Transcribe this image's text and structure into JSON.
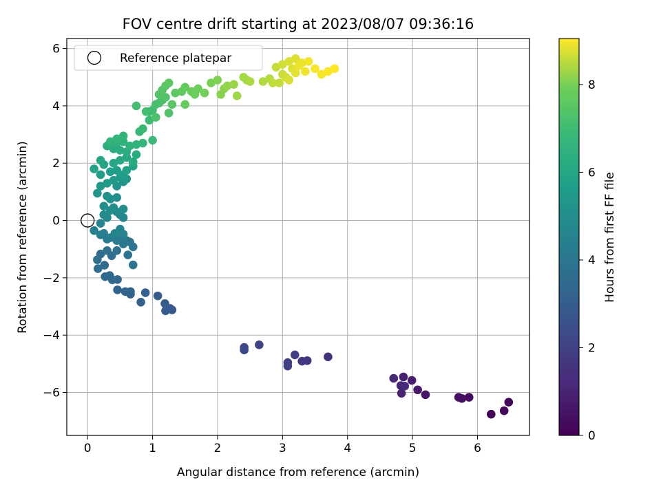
{
  "chart_data": {
    "type": "scatter",
    "title": "FOV centre drift starting at 2023/08/07 09:36:16",
    "xlabel": "Angular distance from reference (arcmin)",
    "ylabel": "Rotation from reference (arcmin)",
    "xlim": [
      -0.32,
      6.8
    ],
    "ylim": [
      -7.5,
      6.35
    ],
    "xticks": [
      0,
      1,
      2,
      3,
      4,
      5,
      6
    ],
    "yticks": [
      -6,
      -4,
      -2,
      0,
      2,
      4,
      6
    ],
    "grid": true,
    "legend": {
      "position": "top-left",
      "entries": [
        "Reference platepar"
      ]
    },
    "reference_point": {
      "x": 0,
      "y": 0
    },
    "colorbar": {
      "label": "Hours from first FF file",
      "colormap": "viridis",
      "range": [
        0,
        9.05
      ],
      "ticks": [
        0,
        2,
        4,
        6,
        8
      ]
    },
    "series": [
      {
        "color_by": "hours",
        "points": [
          [
            6.21,
            -6.76,
            0.05
          ],
          [
            6.48,
            -6.34,
            0.12
          ],
          [
            6.41,
            -6.64,
            0.2
          ],
          [
            5.87,
            -6.17,
            0.3
          ],
          [
            5.76,
            -6.21,
            0.38
          ],
          [
            5.71,
            -6.17,
            0.45
          ],
          [
            5.2,
            -6.08,
            0.6
          ],
          [
            5.08,
            -5.91,
            0.7
          ],
          [
            4.99,
            -5.58,
            0.8
          ],
          [
            4.86,
            -5.46,
            0.9
          ],
          [
            4.83,
            -6.03,
            1.0
          ],
          [
            4.82,
            -5.76,
            1.05
          ],
          [
            4.71,
            -5.51,
            1.15
          ],
          [
            4.88,
            -5.78,
            1.2
          ],
          [
            3.7,
            -4.76,
            1.5
          ],
          [
            3.38,
            -4.89,
            1.6
          ],
          [
            3.3,
            -4.91,
            1.7
          ],
          [
            3.19,
            -4.69,
            1.8
          ],
          [
            3.08,
            -4.96,
            1.9
          ],
          [
            3.08,
            -5.08,
            1.95
          ],
          [
            2.64,
            -4.34,
            2.1
          ],
          [
            2.41,
            -4.43,
            2.2
          ],
          [
            2.41,
            -4.52,
            2.25
          ],
          [
            1.3,
            -3.12,
            2.8
          ],
          [
            1.27,
            -3.07,
            2.85
          ],
          [
            1.2,
            -3.15,
            2.9
          ],
          [
            1.19,
            -2.9,
            2.95
          ],
          [
            1.08,
            -2.63,
            3.0
          ],
          [
            0.89,
            -2.52,
            3.05
          ],
          [
            0.82,
            -2.85,
            3.1
          ],
          [
            0.66,
            -2.57,
            3.15
          ],
          [
            0.66,
            -2.48,
            3.2
          ],
          [
            0.58,
            -2.48,
            3.25
          ],
          [
            0.46,
            -2.42,
            3.3
          ],
          [
            0.46,
            -2.06,
            3.35
          ],
          [
            0.38,
            -2.07,
            3.4
          ],
          [
            0.34,
            -1.92,
            3.45
          ],
          [
            0.27,
            -1.96,
            3.5
          ],
          [
            0.26,
            -1.56,
            3.55
          ],
          [
            0.2,
            -1.17,
            3.6
          ],
          [
            0.16,
            -1.68,
            3.65
          ],
          [
            0.15,
            -1.37,
            3.7
          ],
          [
            0.37,
            -1.23,
            3.75
          ],
          [
            0.45,
            -1.05,
            3.8
          ],
          [
            0.62,
            -1.2,
            3.85
          ],
          [
            0.7,
            -1.55,
            3.9
          ],
          [
            0.7,
            -0.92,
            3.95
          ],
          [
            0.65,
            -0.75,
            4.0
          ],
          [
            0.6,
            -0.7,
            4.05
          ],
          [
            0.55,
            -0.82,
            4.1
          ],
          [
            0.5,
            -0.62,
            4.15
          ],
          [
            0.45,
            -0.7,
            4.2
          ],
          [
            0.4,
            -0.55,
            4.25
          ],
          [
            0.35,
            -0.6,
            4.3
          ],
          [
            0.3,
            -0.65,
            4.35
          ],
          [
            0.25,
            -0.45,
            4.4
          ],
          [
            0.2,
            -0.5,
            4.45
          ],
          [
            0.1,
            -0.35,
            4.5
          ],
          [
            0.55,
            -0.48,
            4.55
          ],
          [
            0.5,
            -0.3,
            4.6
          ],
          [
            0.42,
            -0.45,
            4.65
          ],
          [
            0.55,
            0.1,
            4.7
          ],
          [
            0.5,
            0.2,
            4.75
          ],
          [
            0.45,
            0.3,
            4.8
          ],
          [
            0.3,
            0.1,
            4.85
          ],
          [
            0.25,
            0.2,
            4.9
          ],
          [
            0.35,
            0.35,
            4.95
          ],
          [
            0.4,
            0.45,
            5.0
          ],
          [
            0.55,
            0.4,
            5.05
          ],
          [
            0.35,
            0.75,
            5.1
          ],
          [
            0.45,
            0.8,
            5.15
          ],
          [
            0.3,
            0.85,
            5.2
          ],
          [
            0.15,
            0.95,
            5.25
          ],
          [
            0.45,
            1.2,
            5.3
          ],
          [
            0.55,
            1.35,
            5.35
          ],
          [
            0.6,
            1.45,
            5.4
          ],
          [
            0.5,
            1.5,
            5.45
          ],
          [
            0.4,
            1.4,
            5.5
          ],
          [
            0.3,
            1.3,
            5.55
          ],
          [
            0.2,
            1.6,
            5.6
          ],
          [
            0.35,
            1.7,
            5.65
          ],
          [
            0.45,
            1.75,
            5.7
          ],
          [
            0.55,
            1.6,
            5.75
          ],
          [
            0.6,
            1.75,
            5.8
          ],
          [
            0.7,
            1.9,
            5.85
          ],
          [
            0.1,
            1.8,
            5.9
          ],
          [
            0.25,
            1.95,
            5.95
          ],
          [
            0.4,
            2.0,
            6.0
          ],
          [
            0.5,
            2.1,
            6.05
          ],
          [
            0.6,
            2.2,
            6.1
          ],
          [
            0.7,
            2.05,
            6.15
          ],
          [
            0.75,
            2.3,
            6.2
          ],
          [
            0.6,
            2.4,
            6.25
          ],
          [
            0.5,
            2.45,
            6.3
          ],
          [
            0.4,
            2.5,
            6.35
          ],
          [
            0.3,
            2.6,
            6.4
          ],
          [
            0.45,
            2.7,
            6.45
          ],
          [
            0.55,
            2.75,
            6.5
          ],
          [
            0.65,
            2.6,
            6.55
          ],
          [
            0.75,
            2.65,
            6.6
          ],
          [
            0.35,
            2.75,
            6.6
          ],
          [
            0.45,
            2.85,
            6.65
          ],
          [
            0.55,
            2.95,
            6.7
          ],
          [
            0.85,
            2.7,
            6.75
          ],
          [
            0.8,
            3.1,
            6.8
          ],
          [
            0.85,
            3.2,
            6.85
          ],
          [
            1.0,
            2.8,
            6.9
          ],
          [
            0.95,
            3.5,
            6.95
          ],
          [
            0.95,
            3.8,
            7.0
          ],
          [
            1.0,
            3.85,
            7.05
          ],
          [
            0.75,
            4.0,
            7.1
          ],
          [
            1.05,
            4.05,
            7.15
          ],
          [
            1.1,
            4.1,
            7.2
          ],
          [
            1.15,
            4.2,
            7.25
          ],
          [
            1.25,
            3.75,
            7.3
          ],
          [
            1.2,
            4.3,
            7.35
          ],
          [
            1.1,
            4.4,
            7.4
          ],
          [
            1.15,
            4.55,
            7.45
          ],
          [
            1.2,
            4.7,
            7.5
          ],
          [
            1.3,
            4.05,
            7.55
          ],
          [
            1.35,
            4.45,
            7.6
          ],
          [
            1.45,
            4.5,
            7.65
          ],
          [
            1.5,
            4.65,
            7.7
          ],
          [
            1.5,
            4.05,
            7.75
          ],
          [
            1.6,
            4.5,
            7.8
          ],
          [
            1.65,
            4.4,
            7.85
          ],
          [
            1.7,
            4.6,
            7.9
          ],
          [
            1.8,
            4.45,
            7.95
          ],
          [
            1.9,
            4.8,
            8.0
          ],
          [
            2.0,
            4.9,
            8.05
          ],
          [
            2.05,
            4.4,
            8.1
          ],
          [
            2.1,
            4.6,
            8.15
          ],
          [
            2.15,
            4.7,
            8.2
          ],
          [
            2.25,
            4.75,
            8.25
          ],
          [
            2.3,
            4.35,
            8.3
          ],
          [
            2.45,
            4.9,
            8.35
          ],
          [
            2.5,
            4.85,
            8.4
          ],
          [
            2.7,
            4.85,
            8.45
          ],
          [
            2.8,
            4.95,
            8.5
          ],
          [
            2.85,
            4.8,
            8.55
          ],
          [
            2.95,
            4.8,
            8.6
          ],
          [
            3.0,
            5.1,
            8.65
          ],
          [
            3.05,
            5.0,
            8.7
          ],
          [
            3.1,
            4.9,
            8.75
          ],
          [
            3.15,
            5.3,
            8.8
          ],
          [
            3.2,
            5.15,
            8.85
          ],
          [
            3.25,
            5.4,
            8.9
          ],
          [
            3.3,
            5.5,
            8.92
          ],
          [
            3.35,
            5.2,
            8.95
          ],
          [
            3.4,
            5.55,
            8.97
          ],
          [
            3.5,
            5.3,
            9.0
          ],
          [
            3.6,
            5.1,
            9.02
          ],
          [
            3.7,
            5.2,
            9.04
          ],
          [
            3.8,
            5.3,
            9.05
          ],
          [
            3.0,
            5.45,
            8.7
          ],
          [
            3.1,
            5.55,
            8.75
          ],
          [
            3.2,
            5.65,
            8.8
          ],
          [
            2.9,
            5.35,
            8.6
          ],
          [
            2.4,
            5.0,
            8.35
          ],
          [
            1.25,
            4.8,
            7.55
          ],
          [
            1.05,
            3.6,
            7.3
          ],
          [
            0.9,
            3.8,
            7.1
          ],
          [
            0.2,
            2.1,
            6.0
          ],
          [
            0.2,
            1.2,
            5.4
          ],
          [
            0.25,
            0.5,
            5.0
          ],
          [
            0.2,
            -0.1,
            4.6
          ],
          [
            0.3,
            -1.05,
            3.75
          ]
        ]
      }
    ]
  }
}
